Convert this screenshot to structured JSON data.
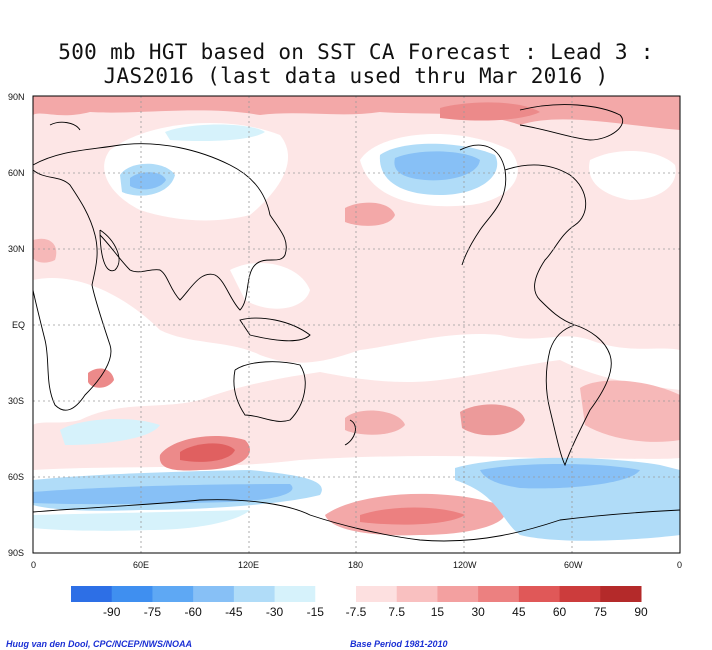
{
  "title": {
    "line1": "500 mb HGT based on SST CA Forecast : Lead 3 :",
    "line2": "JAS2016 (last data used thru Mar 2016 )"
  },
  "axes": {
    "lat_labels": [
      "90N",
      "60N",
      "30N",
      "EQ",
      "30S",
      "60S",
      "90S"
    ],
    "lon_labels": [
      "0",
      "60E",
      "120E",
      "180",
      "120W",
      "60W",
      "0"
    ]
  },
  "legend": {
    "labels": [
      "-90",
      "-75",
      "-60",
      "-45",
      "-30",
      "-15",
      "-7.5",
      "7.5",
      "15",
      "30",
      "45",
      "60",
      "75",
      "90"
    ],
    "colors": [
      "#2d6fe6",
      "#3f8ff0",
      "#5ea8f4",
      "#87c0f6",
      "#b0dcf8",
      "#d6f2fb",
      "#ffffff",
      "#fde0e0",
      "#f9c0c0",
      "#f3a0a0",
      "#ec8080",
      "#e05858",
      "#cc3c3c",
      "#b42a2a"
    ]
  },
  "credits": {
    "left": "Huug van den Dool, CPC/NCEP/NWS/NOAA",
    "right": "Base Period 1981-2010"
  },
  "colors": {
    "frame": "#000000",
    "grid": "#9a9a9a",
    "credit_text": "#1a2fd4"
  }
}
